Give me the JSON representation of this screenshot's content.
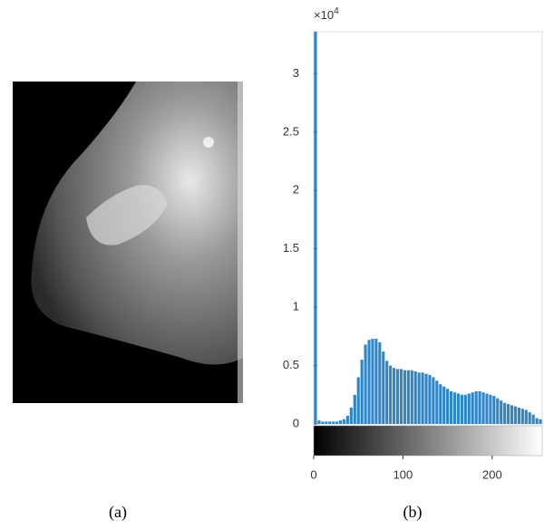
{
  "chart_data": {
    "type": "histogram",
    "y_exponent": {
      "base": "×10",
      "power": "4"
    },
    "bins": [
      0,
      4,
      8,
      12,
      16,
      20,
      24,
      28,
      32,
      36,
      40,
      44,
      48,
      52,
      56,
      60,
      64,
      68,
      72,
      76,
      80,
      84,
      88,
      92,
      96,
      100,
      104,
      108,
      112,
      116,
      120,
      124,
      128,
      132,
      136,
      140,
      144,
      148,
      152,
      156,
      160,
      164,
      168,
      172,
      176,
      180,
      184,
      188,
      192,
      196,
      200,
      204,
      208,
      212,
      216,
      220,
      224,
      228,
      232,
      236,
      240,
      244,
      248,
      252,
      256
    ],
    "counts": [
      3.36,
      0.03,
      0.02,
      0.02,
      0.02,
      0.02,
      0.02,
      0.03,
      0.04,
      0.07,
      0.14,
      0.25,
      0.4,
      0.55,
      0.68,
      0.72,
      0.73,
      0.73,
      0.7,
      0.62,
      0.54,
      0.5,
      0.48,
      0.47,
      0.47,
      0.46,
      0.46,
      0.46,
      0.45,
      0.44,
      0.44,
      0.43,
      0.42,
      0.4,
      0.37,
      0.34,
      0.32,
      0.3,
      0.28,
      0.27,
      0.26,
      0.25,
      0.25,
      0.26,
      0.27,
      0.28,
      0.28,
      0.27,
      0.26,
      0.25,
      0.24,
      0.22,
      0.2,
      0.18,
      0.17,
      0.16,
      0.15,
      0.14,
      0.13,
      0.12,
      0.1,
      0.08,
      0.05,
      0.04
    ],
    "color": "#2e86c9",
    "xlim": [
      0,
      256
    ],
    "ylim": [
      0,
      3.36
    ],
    "xticks": [
      0,
      100,
      200
    ],
    "yticks": [
      0,
      0.5,
      1,
      1.5,
      2,
      2.5,
      3
    ]
  },
  "captions": {
    "left": "(a)",
    "right": "(b)"
  }
}
